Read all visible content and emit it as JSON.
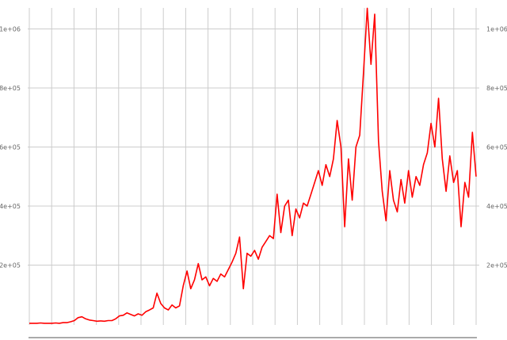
{
  "chart_data": {
    "type": "line",
    "title": "",
    "xlabel": "",
    "ylabel": "",
    "ylim": [
      0,
      1070000
    ],
    "y_ticks": [
      {
        "value": 1000000,
        "label": "1e+06"
      },
      {
        "value": 800000,
        "label": "8e+05"
      },
      {
        "value": 600000,
        "label": "6e+05"
      },
      {
        "value": 400000,
        "label": "4e+05"
      },
      {
        "value": 200000,
        "label": "2e+05"
      }
    ],
    "y_axis_sides": [
      "left",
      "right"
    ],
    "grid": true,
    "vertical_grid_lines": 21,
    "series_color": "#ff0000",
    "grid_color": "#cccccc",
    "series": [
      {
        "values": [
          3000,
          3000,
          3000,
          4000,
          3000,
          3000,
          3000,
          4000,
          3000,
          5000,
          5000,
          8000,
          12000,
          22000,
          25000,
          18000,
          14000,
          12000,
          10000,
          11000,
          10000,
          12000,
          12000,
          18000,
          28000,
          30000,
          38000,
          33000,
          28000,
          35000,
          30000,
          42000,
          48000,
          55000,
          105000,
          70000,
          55000,
          48000,
          65000,
          55000,
          62000,
          130000,
          180000,
          120000,
          150000,
          205000,
          150000,
          160000,
          130000,
          155000,
          145000,
          170000,
          160000,
          185000,
          210000,
          240000,
          295000,
          120000,
          240000,
          230000,
          250000,
          220000,
          260000,
          280000,
          300000,
          290000,
          440000,
          310000,
          400000,
          420000,
          300000,
          390000,
          360000,
          410000,
          400000,
          440000,
          480000,
          520000,
          470000,
          540000,
          500000,
          560000,
          690000,
          600000,
          330000,
          560000,
          420000,
          600000,
          640000,
          850000,
          1070000,
          880000,
          1050000,
          620000,
          450000,
          350000,
          520000,
          420000,
          380000,
          490000,
          410000,
          520000,
          430000,
          500000,
          470000,
          540000,
          580000,
          680000,
          600000,
          765000,
          560000,
          450000,
          570000,
          480000,
          520000,
          330000,
          480000,
          430000,
          650000,
          500000
        ]
      }
    ]
  }
}
